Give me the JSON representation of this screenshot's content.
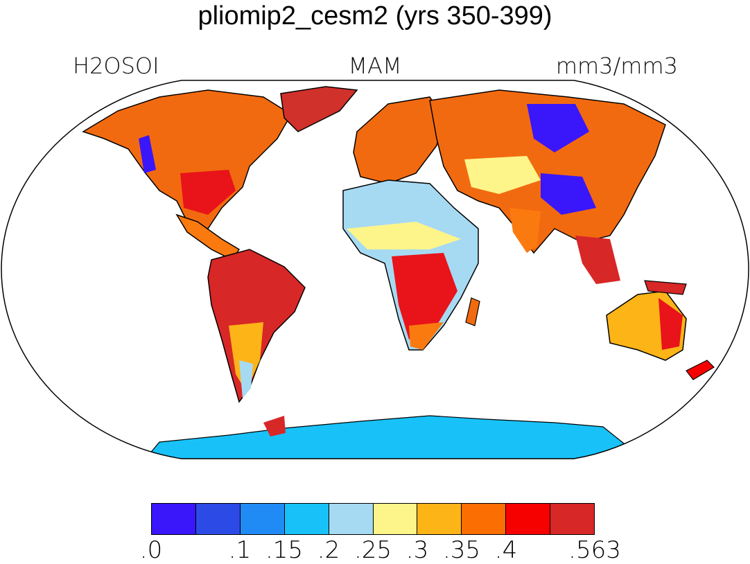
{
  "title": "pliomip2_cesm2 (yrs 350-399)",
  "labels": {
    "variable": "H2OSOI",
    "season": "MAM",
    "units": "mm3/mm3"
  },
  "colorbar": {
    "colors": [
      "#3a16fa",
      "#2c4be6",
      "#208bf5",
      "#18c2f8",
      "#a6daf3",
      "#fdf58a",
      "#fcb417",
      "#fb6e02",
      "#f70000",
      "#d82727"
    ],
    "tick_labels": [
      ".0",
      "",
      ".1",
      ".15",
      ".2",
      ".25",
      ".3",
      ".35",
      ".4",
      "",
      ".563"
    ]
  },
  "land_fill": "#f79a2a",
  "ocean_fill": "#ffffff"
}
